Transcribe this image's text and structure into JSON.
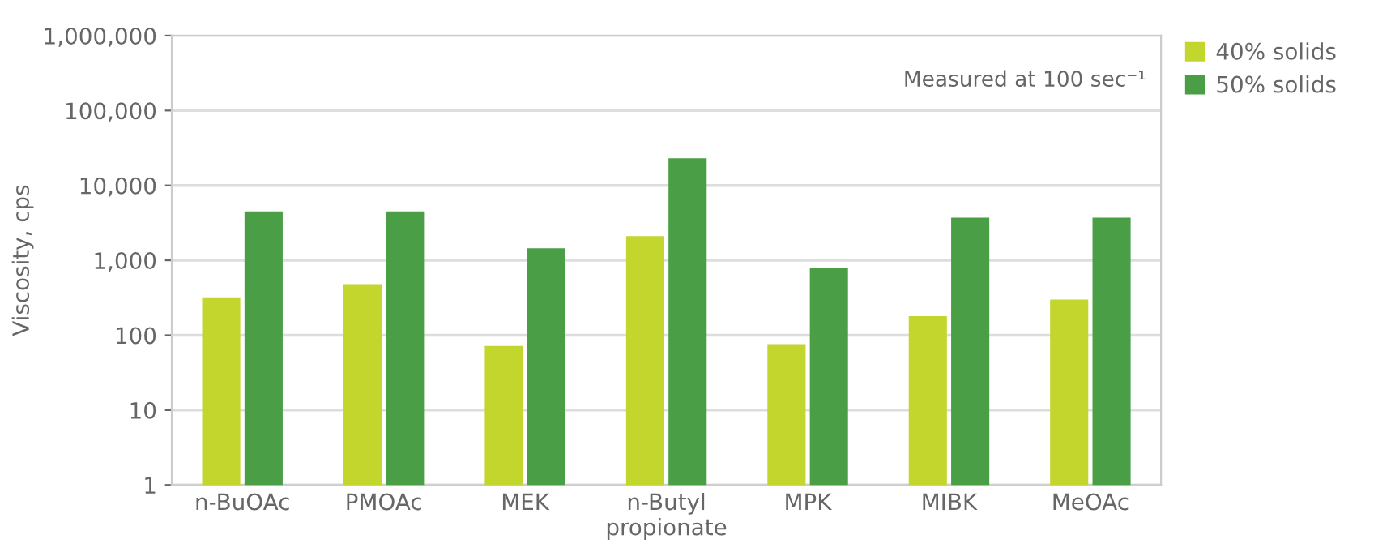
{
  "chart_data": {
    "type": "bar",
    "ylabel": "Viscosity, cps",
    "categories": [
      "n-BuOAc",
      "PMOAc",
      "MEK",
      "n-Butyl\npropionate",
      "MPK",
      "MIBK",
      "MeOAc"
    ],
    "series": [
      {
        "name": "40% solids",
        "color": "#c2d62e",
        "values": [
          320,
          480,
          72,
          2100,
          76,
          180,
          300
        ]
      },
      {
        "name": "50% solids",
        "color": "#4a9e45",
        "values": [
          4500,
          4500,
          1450,
          23000,
          780,
          3700,
          3700
        ]
      }
    ],
    "log": "y",
    "ylim": [
      1,
      1000000
    ],
    "yticks": [
      1,
      10,
      100,
      {
        "value": 1000,
        "label": "1,000"
      },
      {
        "value": 10000,
        "label": "10,000"
      },
      {
        "value": 100000,
        "label": "100,000"
      },
      {
        "value": 1000000,
        "label": "1,000,000"
      }
    ],
    "grid": "y",
    "legend": "top right",
    "annotations": [
      "Measured at 100 sec⁻¹"
    ]
  }
}
